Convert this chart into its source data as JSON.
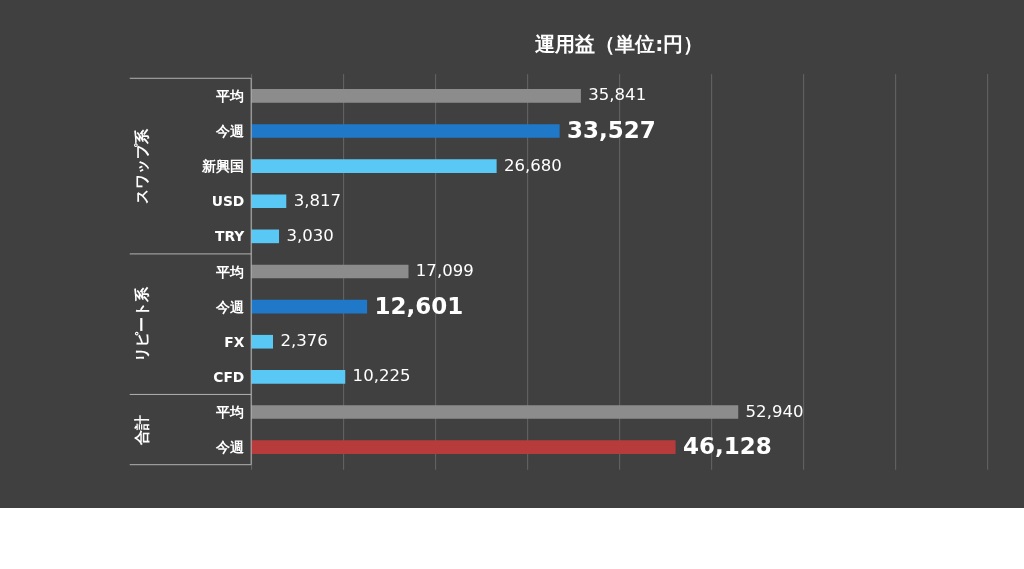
{
  "chart_data": {
    "type": "bar",
    "orientation": "horizontal",
    "title": "運用益（単位:円）",
    "categories": [
      "平均",
      "今週",
      "新興国",
      "USD",
      "TRY",
      "平均",
      "今週",
      "FX",
      "CFD",
      "平均",
      "今週"
    ],
    "values": [
      35841,
      33527,
      26680,
      3817,
      3030,
      17099,
      12601,
      2376,
      10225,
      52940,
      46128
    ],
    "colors": [
      "#8c8c8c",
      "#1f78c8",
      "#5ac8f5",
      "#5ac8f5",
      "#5ac8f5",
      "#8c8c8c",
      "#1f78c8",
      "#5ac8f5",
      "#5ac8f5",
      "#8c8c8c",
      "#b83b3b"
    ],
    "annotations": [
      "スワップ系",
      "リピート系",
      "合計"
    ],
    "xlim": [
      0,
      80000
    ],
    "xticks": [
      {
        "value": 0,
        "label": null
      },
      {
        "value": 10000,
        "label": null
      },
      {
        "value": 20000,
        "label": null
      },
      {
        "value": 30000,
        "label": null
      },
      {
        "value": 40000,
        "label": null
      },
      {
        "value": 50000,
        "label": null
      },
      {
        "value": 60000,
        "label": null
      },
      {
        "value": 70000,
        "label": null
      },
      {
        "value": 80000,
        "label": null
      }
    ],
    "value_labels": [
      "35,841",
      "33,527",
      "26,680",
      "3,817",
      "3,030",
      "17,099",
      "12,601",
      "2,376",
      "10,225",
      "52,940",
      "46,128"
    ],
    "tick_labels": "y",
    "grid": "x"
  }
}
